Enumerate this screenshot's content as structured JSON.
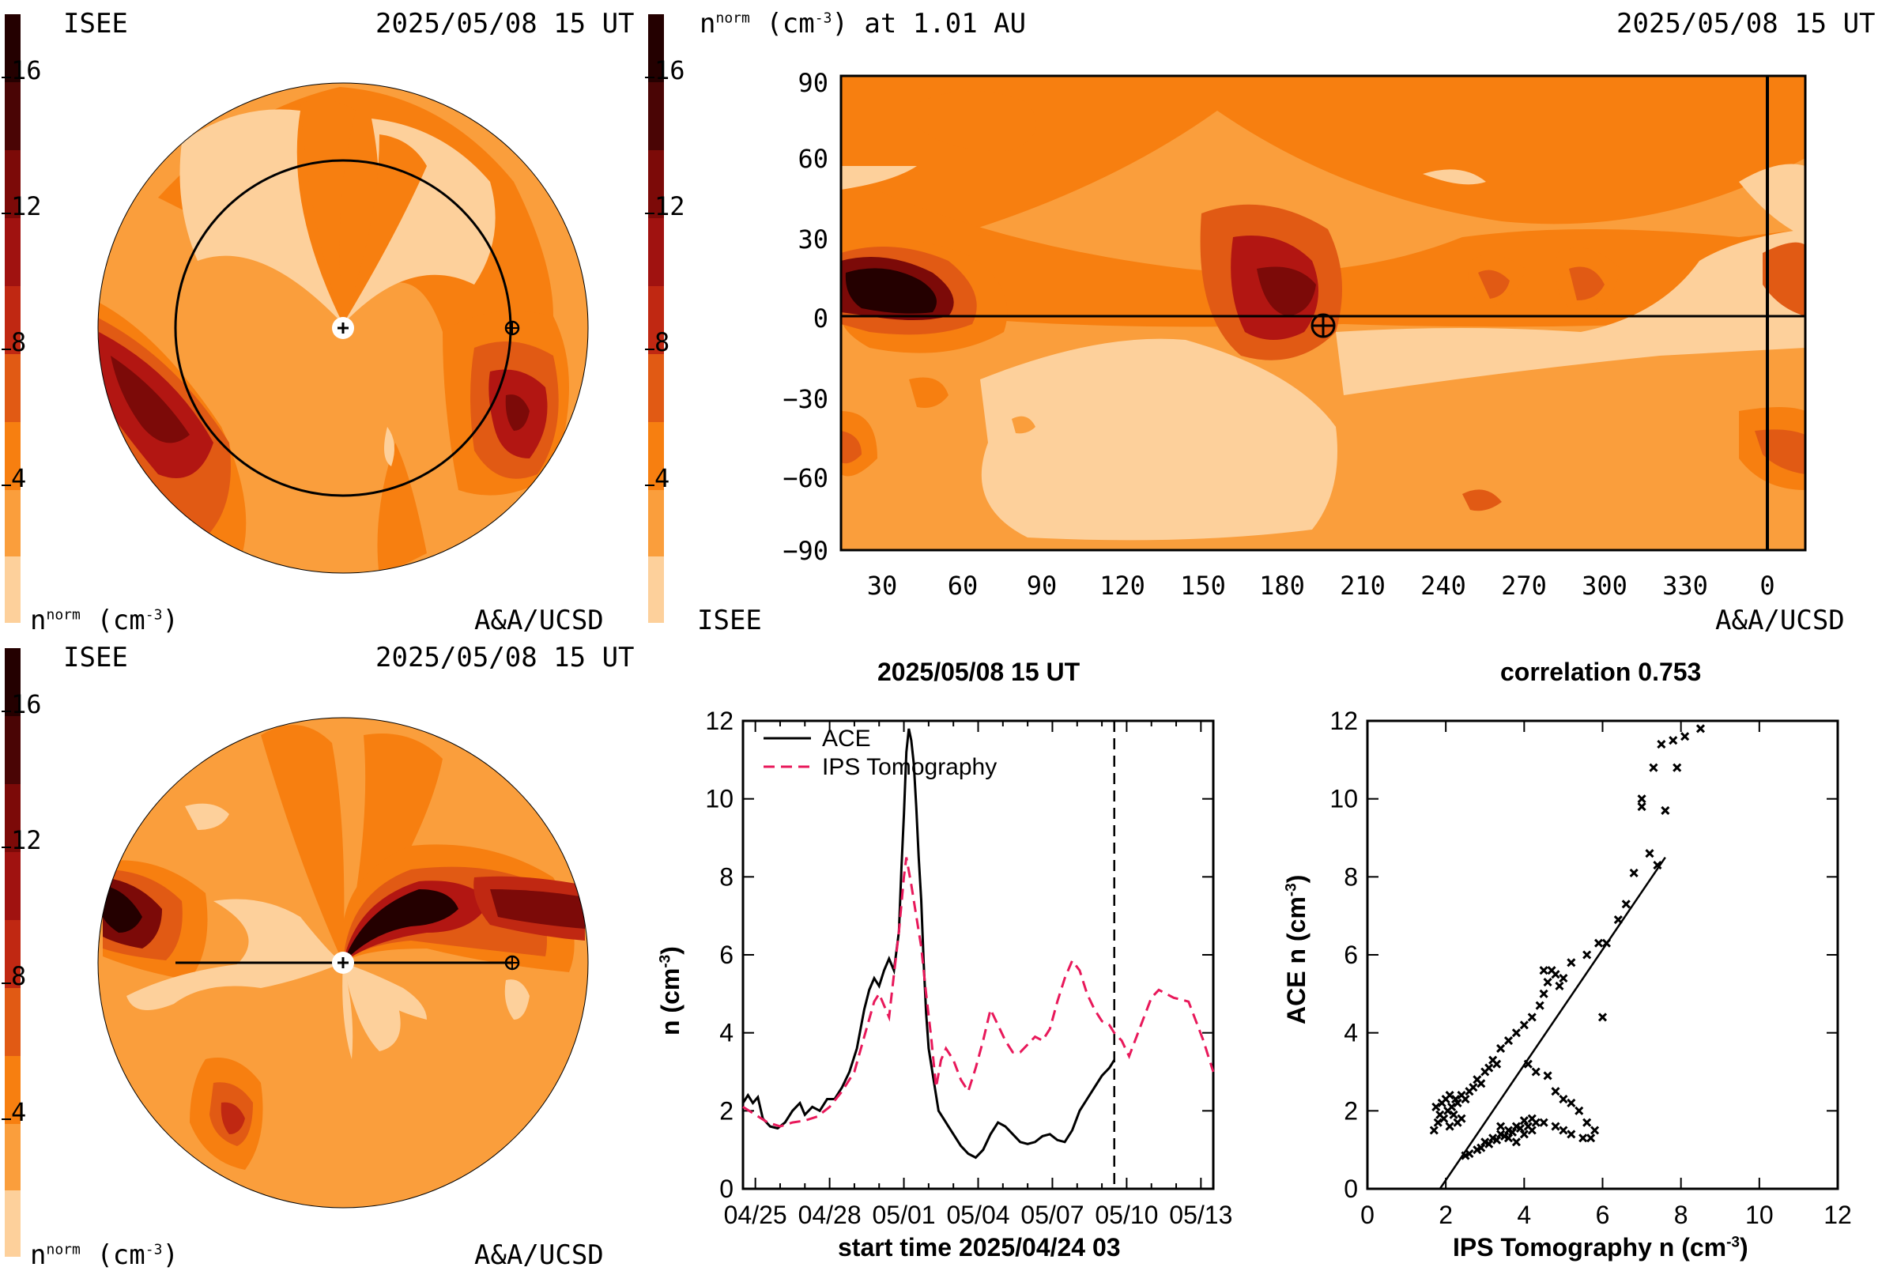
{
  "colors": {
    "lightest": "#fdd09b",
    "light": "#fa9e3c",
    "mid": "#f77f10",
    "midDark": "#e15a14",
    "dark": "#b21612",
    "darker": "#7c0a08",
    "darkest": "#240000",
    "curve_ips": "#e8185a"
  },
  "panels": {
    "top_left": {
      "left_label": "ISEE",
      "date": "2025/05/08 15 UT",
      "unit": "n",
      "unit_sup": "norm",
      "unit_tail": "(cm",
      "unit_exp": "-3",
      "unit_close": ")",
      "credit": "A&A/UCSD"
    },
    "bottom_left": {
      "left_label": "ISEE",
      "date": "2025/05/08 15 UT",
      "unit": "n",
      "unit_sup": "norm",
      "unit_tail": "(cm",
      "unit_exp": "-3",
      "unit_close": ")",
      "credit": "A&A/UCSD"
    },
    "top_right": {
      "title_n": "n",
      "title_sup": "norm",
      "title_tail": "(cm",
      "title_exp": "-3",
      "title_end": ") at 1.01 AU",
      "date": "2025/05/08 15 UT",
      "left_label": "ISEE",
      "credit": "A&A/UCSD"
    }
  },
  "colorbar": {
    "ticks": [
      "16",
      "12",
      "8",
      "4"
    ]
  },
  "synoptic_axes": {
    "y_ticks": [
      "90",
      "60",
      "30",
      "0",
      "−30",
      "−60",
      "−90"
    ],
    "x_ticks": [
      "30",
      "60",
      "90",
      "120",
      "150",
      "180",
      "210",
      "240",
      "270",
      "300",
      "330",
      "0"
    ]
  },
  "chart_data": [
    {
      "type": "line",
      "title": "2025/05/08 15 UT",
      "xlabel": "start time 2025/04/24 03",
      "ylabel": "n (cm⁻³)",
      "ylim": [
        0,
        12
      ],
      "xlim_days": [
        0.5,
        19.5
      ],
      "x_tick_labels": [
        "04/25",
        "04/28",
        "05/01",
        "05/04",
        "05/07",
        "05/10",
        "05/13"
      ],
      "y_tick_labels": [
        "0",
        "2",
        "4",
        "6",
        "8",
        "10",
        "12"
      ],
      "legend": [
        "ACE",
        "IPS Tomography"
      ],
      "marker_day": 15.5,
      "series": [
        {
          "name": "ACE",
          "points": [
            [
              0.5,
              2.2
            ],
            [
              0.7,
              2.4
            ],
            [
              0.9,
              2.2
            ],
            [
              1.1,
              2.35
            ],
            [
              1.3,
              1.8
            ],
            [
              1.6,
              1.6
            ],
            [
              1.9,
              1.55
            ],
            [
              2.2,
              1.7
            ],
            [
              2.5,
              2.0
            ],
            [
              2.8,
              2.2
            ],
            [
              3.0,
              1.9
            ],
            [
              3.3,
              2.1
            ],
            [
              3.6,
              2.0
            ],
            [
              3.9,
              2.3
            ],
            [
              4.2,
              2.3
            ],
            [
              4.5,
              2.6
            ],
            [
              4.8,
              3.0
            ],
            [
              5.1,
              3.6
            ],
            [
              5.4,
              4.6
            ],
            [
              5.6,
              5.1
            ],
            [
              5.8,
              5.4
            ],
            [
              6.0,
              5.2
            ],
            [
              6.2,
              5.6
            ],
            [
              6.4,
              5.9
            ],
            [
              6.6,
              5.6
            ],
            [
              6.8,
              6.6
            ],
            [
              6.9,
              8.2
            ],
            [
              7.0,
              9.6
            ],
            [
              7.1,
              11.2
            ],
            [
              7.2,
              11.8
            ],
            [
              7.3,
              11.5
            ],
            [
              7.4,
              10.9
            ],
            [
              7.5,
              9.8
            ],
            [
              7.6,
              8.5
            ],
            [
              7.7,
              7.4
            ],
            [
              7.8,
              5.8
            ],
            [
              7.9,
              4.5
            ],
            [
              8.0,
              3.6
            ],
            [
              8.2,
              2.8
            ],
            [
              8.4,
              2.0
            ],
            [
              8.6,
              1.8
            ],
            [
              8.8,
              1.6
            ],
            [
              9.0,
              1.4
            ],
            [
              9.3,
              1.1
            ],
            [
              9.6,
              0.9
            ],
            [
              9.9,
              0.8
            ],
            [
              10.2,
              1.0
            ],
            [
              10.5,
              1.4
            ],
            [
              10.8,
              1.7
            ],
            [
              11.1,
              1.6
            ],
            [
              11.4,
              1.4
            ],
            [
              11.7,
              1.2
            ],
            [
              12.0,
              1.15
            ],
            [
              12.3,
              1.2
            ],
            [
              12.6,
              1.35
            ],
            [
              12.9,
              1.4
            ],
            [
              13.2,
              1.25
            ],
            [
              13.5,
              1.2
            ],
            [
              13.8,
              1.5
            ],
            [
              14.1,
              2.0
            ],
            [
              14.4,
              2.3
            ],
            [
              14.7,
              2.6
            ],
            [
              15.0,
              2.9
            ],
            [
              15.3,
              3.1
            ],
            [
              15.5,
              3.3
            ]
          ]
        },
        {
          "name": "IPS Tomography",
          "points": [
            [
              0.5,
              2.1
            ],
            [
              1.0,
              1.9
            ],
            [
              1.5,
              1.7
            ],
            [
              2.0,
              1.6
            ],
            [
              2.5,
              1.7
            ],
            [
              3.0,
              1.75
            ],
            [
              3.5,
              1.85
            ],
            [
              4.0,
              2.1
            ],
            [
              4.5,
              2.5
            ],
            [
              5.0,
              3.0
            ],
            [
              5.4,
              3.9
            ],
            [
              5.8,
              4.8
            ],
            [
              6.0,
              5.0
            ],
            [
              6.2,
              4.7
            ],
            [
              6.4,
              4.4
            ],
            [
              6.6,
              5.5
            ],
            [
              6.8,
              6.6
            ],
            [
              7.0,
              8.0
            ],
            [
              7.1,
              8.5
            ],
            [
              7.3,
              7.8
            ],
            [
              7.5,
              7.0
            ],
            [
              7.7,
              6.2
            ],
            [
              7.9,
              5.0
            ],
            [
              8.1,
              3.9
            ],
            [
              8.3,
              2.6
            ],
            [
              8.5,
              3.3
            ],
            [
              8.7,
              3.6
            ],
            [
              9.0,
              3.3
            ],
            [
              9.3,
              2.8
            ],
            [
              9.6,
              2.5
            ],
            [
              9.9,
              3.1
            ],
            [
              10.2,
              3.8
            ],
            [
              10.5,
              4.6
            ],
            [
              10.8,
              4.2
            ],
            [
              11.1,
              3.8
            ],
            [
              11.4,
              3.5
            ],
            [
              11.7,
              3.5
            ],
            [
              12.0,
              3.7
            ],
            [
              12.3,
              3.9
            ],
            [
              12.6,
              3.8
            ],
            [
              12.9,
              4.1
            ],
            [
              13.2,
              4.8
            ],
            [
              13.5,
              5.4
            ],
            [
              13.8,
              5.85
            ],
            [
              14.1,
              5.6
            ],
            [
              14.4,
              5.0
            ],
            [
              14.7,
              4.6
            ],
            [
              15.0,
              4.3
            ],
            [
              15.3,
              4.2
            ],
            [
              15.5,
              4.0
            ],
            [
              15.8,
              3.8
            ],
            [
              16.1,
              3.4
            ],
            [
              16.4,
              3.9
            ],
            [
              16.7,
              4.4
            ],
            [
              17.0,
              4.9
            ],
            [
              17.3,
              5.1
            ],
            [
              17.6,
              5.0
            ],
            [
              17.9,
              4.9
            ],
            [
              18.2,
              4.85
            ],
            [
              18.5,
              4.8
            ],
            [
              18.8,
              4.3
            ],
            [
              19.1,
              3.8
            ],
            [
              19.3,
              3.4
            ],
            [
              19.5,
              3.0
            ]
          ]
        }
      ]
    },
    {
      "type": "scatter",
      "title": "correlation 0.753",
      "xlabel": "IPS Tomography n (cm⁻³)",
      "ylabel": "ACE n (cm⁻³)",
      "xlim": [
        0,
        12
      ],
      "ylim": [
        0,
        12
      ],
      "x_tick_labels": [
        "0",
        "2",
        "4",
        "6",
        "8",
        "10",
        "12"
      ],
      "y_tick_labels": [
        "0",
        "2",
        "4",
        "6",
        "8",
        "10",
        "12"
      ],
      "fit_line": [
        [
          1.85,
          0
        ],
        [
          7.6,
          8.5
        ]
      ],
      "points": [
        [
          1.7,
          1.5
        ],
        [
          1.8,
          1.7
        ],
        [
          1.75,
          2.1
        ],
        [
          1.85,
          1.9
        ],
        [
          1.9,
          2.2
        ],
        [
          2.0,
          2.3
        ],
        [
          1.95,
          1.8
        ],
        [
          2.05,
          2.0
        ],
        [
          2.1,
          2.4
        ],
        [
          2.15,
          2.1
        ],
        [
          2.2,
          1.9
        ],
        [
          2.25,
          2.3
        ],
        [
          2.3,
          2.2
        ],
        [
          2.4,
          2.4
        ],
        [
          2.5,
          2.3
        ],
        [
          2.6,
          2.5
        ],
        [
          2.7,
          2.6
        ],
        [
          2.8,
          2.8
        ],
        [
          2.9,
          2.7
        ],
        [
          3.0,
          3.0
        ],
        [
          3.1,
          3.1
        ],
        [
          3.2,
          3.3
        ],
        [
          3.3,
          3.2
        ],
        [
          3.4,
          3.6
        ],
        [
          3.6,
          3.8
        ],
        [
          3.8,
          4.0
        ],
        [
          4.0,
          4.2
        ],
        [
          4.2,
          4.4
        ],
        [
          4.4,
          4.7
        ],
        [
          4.5,
          5.0
        ],
        [
          4.6,
          5.3
        ],
        [
          4.7,
          5.6
        ],
        [
          4.8,
          5.5
        ],
        [
          4.9,
          5.2
        ],
        [
          5.0,
          5.4
        ],
        [
          4.5,
          5.6
        ],
        [
          5.2,
          5.8
        ],
        [
          5.6,
          6.0
        ],
        [
          4.1,
          3.2
        ],
        [
          4.3,
          3.0
        ],
        [
          4.6,
          2.9
        ],
        [
          4.8,
          2.5
        ],
        [
          5.0,
          2.3
        ],
        [
          5.2,
          2.2
        ],
        [
          5.4,
          2.0
        ],
        [
          5.6,
          1.7
        ],
        [
          5.8,
          1.5
        ],
        [
          5.7,
          1.3
        ],
        [
          5.5,
          1.3
        ],
        [
          5.2,
          1.4
        ],
        [
          5.0,
          1.5
        ],
        [
          4.8,
          1.6
        ],
        [
          4.5,
          1.7
        ],
        [
          4.2,
          1.8
        ],
        [
          4.0,
          1.75
        ],
        [
          3.8,
          1.6
        ],
        [
          3.6,
          1.5
        ],
        [
          3.4,
          1.4
        ],
        [
          3.2,
          1.3
        ],
        [
          3.0,
          1.2
        ],
        [
          2.8,
          1.0
        ],
        [
          2.6,
          0.9
        ],
        [
          2.5,
          0.85
        ],
        [
          3.5,
          1.35
        ],
        [
          3.7,
          1.45
        ],
        [
          3.9,
          1.55
        ],
        [
          4.1,
          1.6
        ],
        [
          4.3,
          1.7
        ],
        [
          3.3,
          1.25
        ],
        [
          3.1,
          1.15
        ],
        [
          2.9,
          1.05
        ],
        [
          3.4,
          1.6
        ],
        [
          3.6,
          1.3
        ],
        [
          3.8,
          1.2
        ],
        [
          4.0,
          1.4
        ],
        [
          4.2,
          1.5
        ],
        [
          2.4,
          1.8
        ],
        [
          2.3,
          1.7
        ],
        [
          2.1,
          1.6
        ],
        [
          6.0,
          4.4
        ],
        [
          5.9,
          6.3
        ],
        [
          6.1,
          6.3
        ],
        [
          6.4,
          6.9
        ],
        [
          6.6,
          7.3
        ],
        [
          6.8,
          8.1
        ],
        [
          7.0,
          9.8
        ],
        [
          7.0,
          10.0
        ],
        [
          7.3,
          10.8
        ],
        [
          7.5,
          11.4
        ],
        [
          7.6,
          9.7
        ],
        [
          7.8,
          11.5
        ],
        [
          7.9,
          10.8
        ],
        [
          8.1,
          11.6
        ],
        [
          8.5,
          11.8
        ],
        [
          7.2,
          8.6
        ],
        [
          7.4,
          8.3
        ]
      ]
    }
  ]
}
